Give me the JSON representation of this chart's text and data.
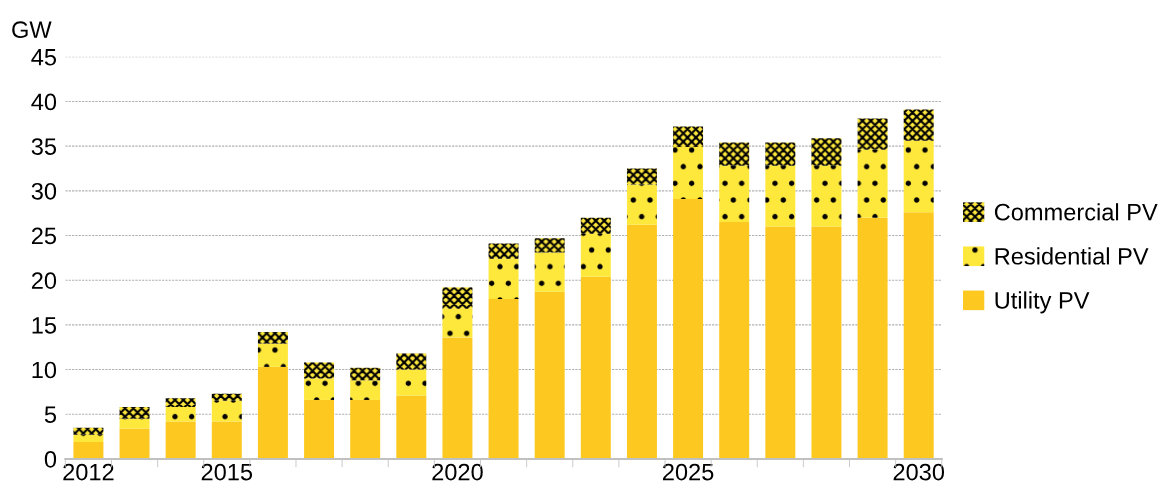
{
  "chart_data": {
    "type": "bar",
    "stacked": true,
    "ylabel": "GW",
    "categories": [
      "2012",
      null,
      null,
      "2015",
      null,
      null,
      null,
      null,
      "2020",
      null,
      null,
      null,
      null,
      "2025",
      null,
      null,
      null,
      null,
      "2030"
    ],
    "series": [
      {
        "name": "Utility PV",
        "color": "#fdc921",
        "values": [
          1.9,
          3.4,
          4.2,
          4.2,
          10.3,
          6.6,
          6.6,
          7.1,
          13.6,
          17.9,
          18.7,
          20.4,
          26.2,
          29.1,
          26.5,
          26.0,
          26.0,
          27.0,
          27.6
        ]
      },
      {
        "name": "Residential PV",
        "color": "#ffe83c",
        "values": [
          0.8,
          1.1,
          1.6,
          2.3,
          2.6,
          2.4,
          2.2,
          2.9,
          3.2,
          4.5,
          4.4,
          4.8,
          4.5,
          5.8,
          6.3,
          6.8,
          6.8,
          7.6,
          8.0
        ]
      },
      {
        "name": "Commercial PV",
        "color": "#8a7a1c",
        "values": [
          0.8,
          1.3,
          1.0,
          0.8,
          1.3,
          1.8,
          1.4,
          1.8,
          2.4,
          1.7,
          1.6,
          1.8,
          1.8,
          2.3,
          2.6,
          2.6,
          3.1,
          3.5,
          3.5
        ]
      }
    ],
    "ylim": [
      0,
      45
    ],
    "yticks": [
      0,
      5,
      10,
      15,
      20,
      25,
      30,
      35,
      40,
      45
    ],
    "grid": "y",
    "legend": "right"
  }
}
